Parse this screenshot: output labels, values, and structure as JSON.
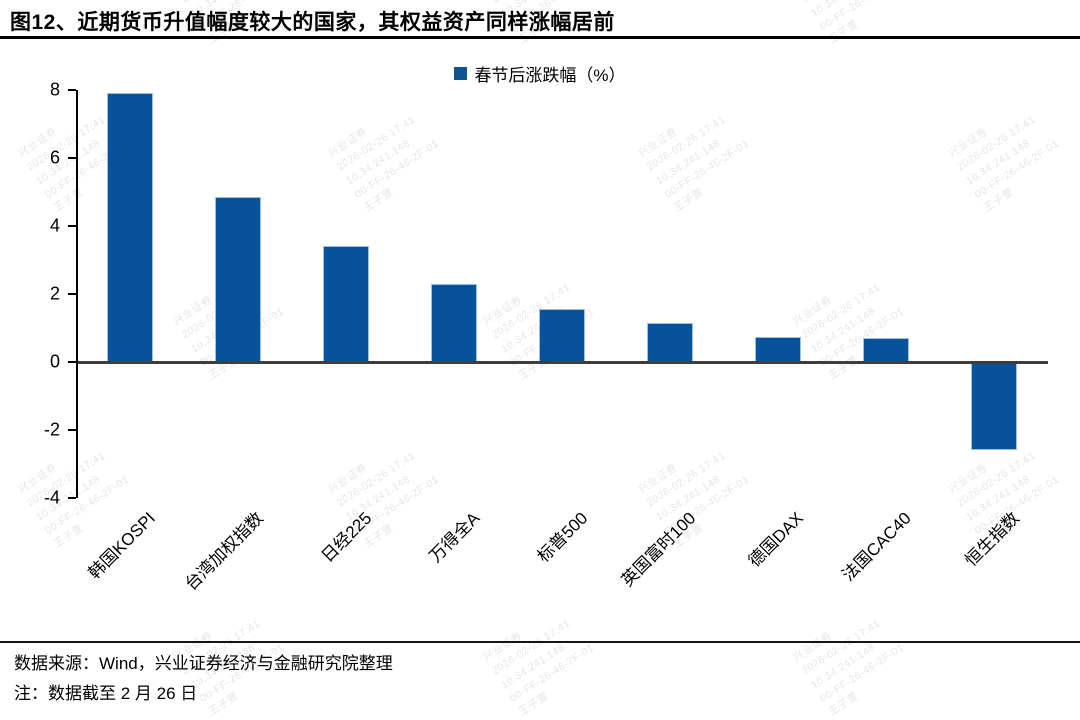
{
  "header": {
    "title": "图12、近期货币升值幅度较大的国家，其权益资产同样涨幅居前"
  },
  "legend": {
    "label": "春节后涨跌幅（%）",
    "marker_color": "#0B5394"
  },
  "chart_data": {
    "type": "bar",
    "categories": [
      "韩国KOSPI",
      "台湾加权指数",
      "日经225",
      "万得全A",
      "标普500",
      "英国富时100",
      "德国DAX",
      "法国CAC40",
      "恒生指数"
    ],
    "values": [
      7.9,
      4.85,
      3.4,
      2.3,
      1.55,
      1.15,
      0.75,
      0.7,
      -2.6
    ],
    "title": "",
    "xlabel": "",
    "ylabel": "",
    "ylim": [
      -4,
      8
    ],
    "yticks": [
      8,
      6,
      4,
      2,
      0,
      -2,
      -4
    ],
    "bar_color": "#05519A",
    "bar_edge_color": "#9cc0e8",
    "legend": "春节后涨跌幅（%）",
    "legend_position": "top-center",
    "grid": false
  },
  "footer": {
    "source": "数据来源：Wind，兴业证券经济与金融研究院整理",
    "note": "注：数据截至 2 月 26 日"
  },
  "watermark": {
    "lines": [
      "兴业证券",
      "2026-02-26 17:41",
      "10.34.241.148",
      "00-FF-26-46-2F-01",
      "王子萱"
    ],
    "color": "#b7a6a6"
  }
}
